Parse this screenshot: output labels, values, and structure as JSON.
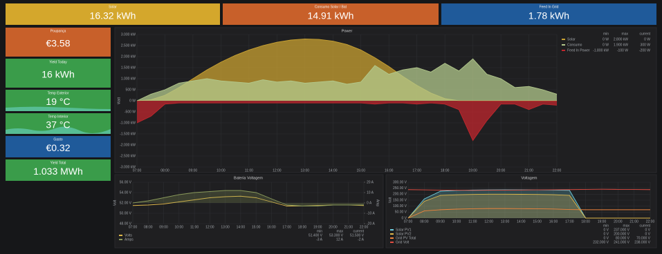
{
  "top_stats": [
    {
      "title": "Solar",
      "value": "16.32 kWh",
      "color": "#d4a72c"
    },
    {
      "title": "Consumo Solar / Bat",
      "value": "14.91 kWh",
      "color": "#c8602a"
    },
    {
      "title": "Feed In Grid",
      "value": "1.78 kWh",
      "color": "#1f5a9a"
    }
  ],
  "side_stats": [
    {
      "title": "Poupança",
      "value": "€3.58",
      "color": "#c8602a"
    },
    {
      "title": "Yield Today",
      "value": "16 kWh",
      "color": "#3a9c4a"
    },
    {
      "title": "Temp Exterior",
      "value": "19 °C",
      "color": "#3a9c4a"
    },
    {
      "title": "Temp Interior",
      "value": "37 °C",
      "color": "#3a9c4a"
    },
    {
      "title": "Gasto",
      "value": "€0.32",
      "color": "#1f5a9a"
    },
    {
      "title": "Yield Total",
      "value": "1.033 MWh",
      "color": "#3a9c4a"
    }
  ],
  "chart_data": [
    {
      "type": "area",
      "title": "Power",
      "ylabel": "Watt",
      "legend": "right",
      "grid": true,
      "legend_columns": [
        "min",
        "max",
        "current"
      ],
      "x": [
        7,
        7.5,
        8,
        8.5,
        9,
        9.5,
        10,
        10.5,
        11,
        11.5,
        12,
        12.5,
        13,
        13.5,
        14,
        14.5,
        15,
        15.5,
        16,
        16.5,
        17,
        17.5,
        18,
        18.5,
        19,
        19.5,
        20,
        20.5,
        21,
        21.5,
        22
      ],
      "xlim": [
        7,
        22
      ],
      "xticks": [
        {
          "value": 7,
          "label": "07:00"
        },
        {
          "value": 8,
          "label": "08:00"
        },
        {
          "value": 9,
          "label": "09:00"
        },
        {
          "value": 10,
          "label": "10:00"
        },
        {
          "value": 11,
          "label": "11:00"
        },
        {
          "value": 12,
          "label": "12:00"
        },
        {
          "value": 13,
          "label": "13:00"
        },
        {
          "value": 14,
          "label": "14:00"
        },
        {
          "value": 15,
          "label": "15:00"
        },
        {
          "value": 16,
          "label": "16:00"
        },
        {
          "value": 17,
          "label": "17:00"
        },
        {
          "value": 18,
          "label": "18:00"
        },
        {
          "value": 19,
          "label": "19:00"
        },
        {
          "value": 20,
          "label": "20:00"
        },
        {
          "value": 21,
          "label": "21:00"
        },
        {
          "value": 22,
          "label": "22:00"
        }
      ],
      "ylim": [
        -3000,
        3000
      ],
      "yticks": [
        {
          "value": 3000,
          "label": "3.000 kW"
        },
        {
          "value": 2500,
          "label": "2.500 kW"
        },
        {
          "value": 2000,
          "label": "2.000 kW"
        },
        {
          "value": 1500,
          "label": "1.500 kW"
        },
        {
          "value": 1000,
          "label": "1.000 kW"
        },
        {
          "value": 500,
          "label": "500 W"
        },
        {
          "value": 0,
          "label": "0 W"
        },
        {
          "value": -500,
          "label": "-500 W"
        },
        {
          "value": -1000,
          "label": "-1.000 kW"
        },
        {
          "value": -1500,
          "label": "-1.500 kW"
        },
        {
          "value": -2000,
          "label": "-2.000 kW"
        },
        {
          "value": -2500,
          "label": "-2.500 kW"
        },
        {
          "value": -3000,
          "label": "-3.000 kW"
        }
      ],
      "series": [
        {
          "name": "Solar",
          "color": "#c9a232",
          "fill": true,
          "legend_values": [
            "0 W",
            "2.800 kW",
            "0 W"
          ],
          "values": [
            0,
            50,
            250,
            600,
            1000,
            1400,
            1750,
            2050,
            2300,
            2500,
            2650,
            2750,
            2800,
            2780,
            2700,
            2550,
            2300,
            1950,
            1550,
            1100,
            700,
            350,
            100,
            0,
            0,
            0,
            0,
            0,
            0,
            0,
            0
          ]
        },
        {
          "name": "Consumo",
          "color": "#b3c98c",
          "fill": true,
          "legend_values": [
            "0 W",
            "1.900 kW",
            "300 W"
          ],
          "values": [
            0,
            300,
            500,
            800,
            900,
            1000,
            900,
            850,
            800,
            950,
            850,
            900,
            800,
            850,
            900,
            750,
            850,
            1600,
            1200,
            1400,
            1500,
            1300,
            1700,
            1350,
            1900,
            1200,
            1000,
            600,
            650,
            500,
            300
          ]
        },
        {
          "name": "Feed In Power",
          "color": "#c0272d",
          "fill": true,
          "legend_values": [
            "-1.800 kW",
            "-100 W",
            "-200 W"
          ],
          "values": [
            -1000,
            -700,
            -150,
            -100,
            -100,
            -100,
            -100,
            -100,
            -100,
            -100,
            -100,
            -100,
            -100,
            -100,
            -100,
            -100,
            -100,
            -150,
            -100,
            -100,
            -150,
            -100,
            -150,
            -400,
            -1800,
            -900,
            -150,
            -150,
            -400,
            -150,
            -200
          ]
        }
      ]
    },
    {
      "type": "line",
      "title": "Bateria Voltagem",
      "ylabel": "Volt",
      "y2label": "Amp",
      "legend": "bottom",
      "grid": true,
      "legend_columns": [
        "min",
        "max",
        "current"
      ],
      "x": [
        7,
        8,
        9,
        10,
        11,
        12,
        13,
        14,
        15,
        16,
        17,
        18,
        19,
        20,
        21,
        22
      ],
      "xlim": [
        7,
        22
      ],
      "xticks": [
        {
          "value": 7,
          "label": "07:00"
        },
        {
          "value": 8,
          "label": "08:00"
        },
        {
          "value": 9,
          "label": "09:00"
        },
        {
          "value": 10,
          "label": "10:00"
        },
        {
          "value": 11,
          "label": "11:00"
        },
        {
          "value": 12,
          "label": "12:00"
        },
        {
          "value": 13,
          "label": "13:00"
        },
        {
          "value": 14,
          "label": "14:00"
        },
        {
          "value": 15,
          "label": "15:00"
        },
        {
          "value": 16,
          "label": "16:00"
        },
        {
          "value": 17,
          "label": "17:00"
        },
        {
          "value": 18,
          "label": "18:00"
        },
        {
          "value": 19,
          "label": "19:00"
        },
        {
          "value": 20,
          "label": "20:00"
        },
        {
          "value": 21,
          "label": "21:00"
        },
        {
          "value": 22,
          "label": "22:00"
        }
      ],
      "ylim": [
        48,
        56
      ],
      "yticks": [
        {
          "value": 56,
          "label": "56.00 V"
        },
        {
          "value": 54,
          "label": "54.00 V"
        },
        {
          "value": 52,
          "label": "52.00 V"
        },
        {
          "value": 50,
          "label": "50.00 V"
        },
        {
          "value": 48,
          "label": "48.00 V"
        }
      ],
      "y2lim": [
        -20,
        20
      ],
      "y2ticks": [
        {
          "value": 20,
          "label": "20 A"
        },
        {
          "value": 10,
          "label": "10 A"
        },
        {
          "value": 0,
          "label": "0 A"
        },
        {
          "value": -10,
          "label": "-10 A"
        },
        {
          "value": -20,
          "label": "-20 A"
        }
      ],
      "series": [
        {
          "name": "Volts",
          "color": "#e0b84a",
          "fill": false,
          "legend_values": [
            "51.400 V",
            "53.300 V",
            "51.500 V"
          ],
          "values": [
            51.5,
            51.6,
            51.8,
            52.2,
            52.6,
            53,
            53.2,
            53.3,
            53,
            52.2,
            51.4,
            51.4,
            51.5,
            51.6,
            51.6,
            51.5
          ]
        },
        {
          "name": "Amps",
          "color": "#8a9a5b",
          "fill": true,
          "axis": "y2",
          "legend_values": [
            "-3 A",
            "12 A",
            "-2 A"
          ],
          "values": [
            0,
            2,
            5,
            8,
            10,
            11,
            12,
            12,
            10,
            4,
            -2,
            -3,
            -3,
            -2,
            -2,
            -2
          ]
        }
      ]
    },
    {
      "type": "line",
      "title": "Voltagem",
      "ylabel": "Volt",
      "legend": "bottom",
      "grid": true,
      "legend_columns": [
        "min",
        "max",
        "current"
      ],
      "x": [
        7,
        8,
        9,
        10,
        11,
        12,
        13,
        14,
        15,
        16,
        17,
        18,
        19,
        20,
        21,
        22
      ],
      "xlim": [
        7,
        22
      ],
      "xticks": [
        {
          "value": 7,
          "label": "07:00"
        },
        {
          "value": 8,
          "label": "08:00"
        },
        {
          "value": 9,
          "label": "09:00"
        },
        {
          "value": 10,
          "label": "10:00"
        },
        {
          "value": 11,
          "label": "11:00"
        },
        {
          "value": 12,
          "label": "12:00"
        },
        {
          "value": 13,
          "label": "13:00"
        },
        {
          "value": 14,
          "label": "14:00"
        },
        {
          "value": 15,
          "label": "15:00"
        },
        {
          "value": 16,
          "label": "16:00"
        },
        {
          "value": 17,
          "label": "17:00"
        },
        {
          "value": 18,
          "label": "18:00"
        },
        {
          "value": 19,
          "label": "19:00"
        },
        {
          "value": 20,
          "label": "20:00"
        },
        {
          "value": 21,
          "label": "21:00"
        },
        {
          "value": 22,
          "label": "22:00"
        }
      ],
      "ylim": [
        0,
        300
      ],
      "yticks": [
        {
          "value": 300,
          "label": "300.00 V"
        },
        {
          "value": 250,
          "label": "250.00 V"
        },
        {
          "value": 200,
          "label": "200.00 V"
        },
        {
          "value": 150,
          "label": "150.00 V"
        },
        {
          "value": 100,
          "label": "100.00 V"
        },
        {
          "value": 50,
          "label": "50.00 V"
        },
        {
          "value": 0,
          "label": "0 V"
        }
      ],
      "series": [
        {
          "name": "Solar PV1",
          "color": "#6ed0e0",
          "fill": true,
          "legend_values": [
            "0 V",
            "237.000 V",
            "0 V"
          ],
          "values": [
            0,
            160,
            225,
            232,
            235,
            236,
            237,
            237,
            236,
            235,
            232,
            0,
            0,
            0,
            0,
            0
          ]
        },
        {
          "name": "Solar PV2",
          "color": "#e0b84a",
          "fill": true,
          "legend_values": [
            "0 V",
            "200.000 V",
            "0 V"
          ],
          "values": [
            0,
            140,
            190,
            195,
            198,
            200,
            200,
            199,
            198,
            196,
            190,
            0,
            0,
            0,
            0,
            0
          ]
        },
        {
          "name": "Grid PV Total",
          "color": "#ef843c",
          "fill": false,
          "legend_values": [
            "0 V",
            "80.000 V",
            "70.000 V"
          ],
          "values": [
            0,
            60,
            70,
            75,
            78,
            80,
            80,
            79,
            78,
            76,
            72,
            70,
            70,
            70,
            70,
            70
          ]
        },
        {
          "name": "Grid Volt",
          "color": "#e24d42",
          "fill": false,
          "legend_values": [
            "232.000 V",
            "241.000 V",
            "238.000 V"
          ],
          "values": [
            238,
            236,
            234,
            233,
            232,
            233,
            234,
            235,
            236,
            237,
            238,
            240,
            241,
            240,
            239,
            238
          ]
        }
      ]
    }
  ]
}
